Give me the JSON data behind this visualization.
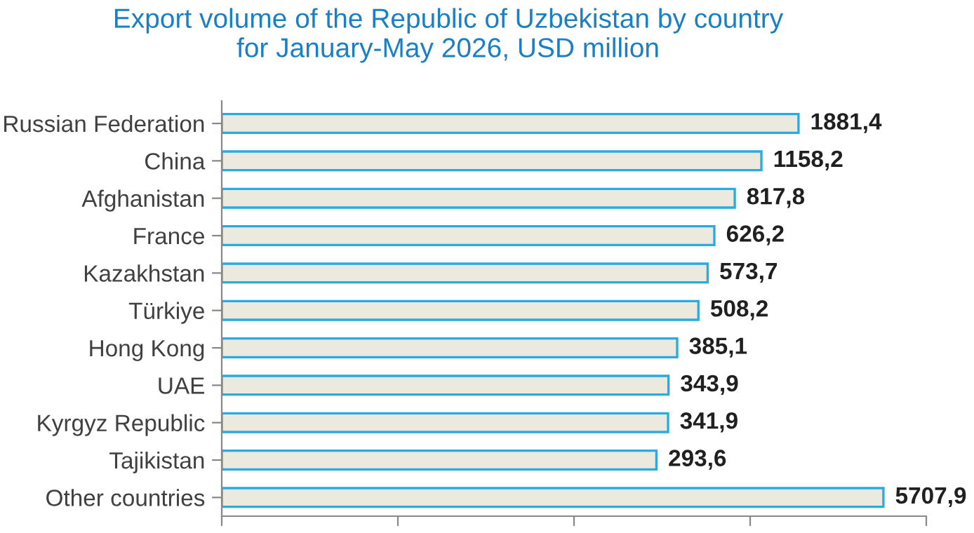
{
  "chart_data": {
    "type": "bar",
    "orientation": "horizontal",
    "log": "x",
    "title": "Export volume of the Republic of Uzbekistan by country\nfor January-May 2026, USD million",
    "categories": [
      "Russian Federation",
      "China",
      "Afghanistan",
      "France",
      "Kazakhstan",
      "Türkiye",
      "Hong Kong",
      "UAE",
      "Kyrgyz Republic",
      "Tajikistan",
      "Other countries"
    ],
    "values": [
      1881.4,
      1158.2,
      817.8,
      626.2,
      573.7,
      508.2,
      385.1,
      343.9,
      341.9,
      293.6,
      5707.9
    ],
    "value_labels": [
      "1881,4",
      "1158,2",
      "817,8",
      "626,2",
      "573,7",
      "508,2",
      "385,1",
      "343,9",
      "341,9",
      "293,6",
      "5707,9"
    ],
    "color": "#ece9df",
    "xlim": [
      1,
      10000
    ],
    "xticks": [
      {
        "value": 1,
        "label": null
      },
      {
        "value": 10,
        "label": null
      },
      {
        "value": 100,
        "label": null
      },
      {
        "value": 1000,
        "label": null
      },
      {
        "value": 10000,
        "label": null
      }
    ],
    "tick_labels": "y",
    "grid": false,
    "legend": false
  }
}
